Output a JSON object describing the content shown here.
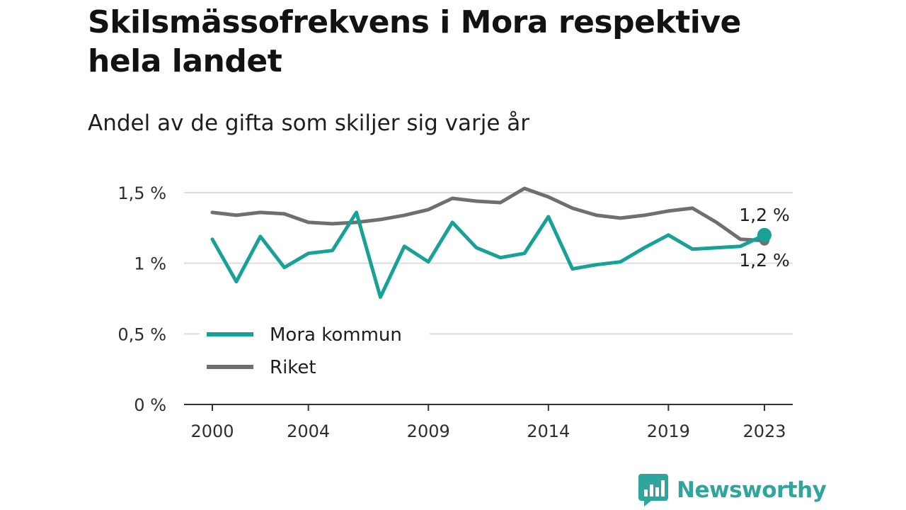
{
  "colors": {
    "mora": "#17a197",
    "riket": "#6f6e73",
    "grid": "#dedede",
    "axis": "#333333",
    "brand": "#2ea69e"
  },
  "brand": {
    "name": "Newsworthy",
    "icon": "newsworthy-logo-icon"
  },
  "chart_data": {
    "type": "line",
    "title": "Skilsmässofrekvens i Mora respektive hela landet",
    "subtitle": "Andel av de gifta som skiljer sig varje år",
    "xlabel": "",
    "ylabel": "",
    "x": [
      2000,
      2001,
      2002,
      2003,
      2004,
      2005,
      2006,
      2007,
      2008,
      2009,
      2010,
      2011,
      2012,
      2013,
      2014,
      2015,
      2016,
      2017,
      2018,
      2019,
      2020,
      2021,
      2022,
      2023
    ],
    "x_ticks": [
      2000,
      2004,
      2009,
      2014,
      2019,
      2023
    ],
    "x_tick_labels": [
      "2000",
      "2004",
      "2009",
      "2014",
      "2019",
      "2023"
    ],
    "ylim": [
      0,
      1.5
    ],
    "y_ticks": [
      0,
      0.5,
      1,
      1.5
    ],
    "y_tick_labels": [
      "0 %",
      "0,5 %",
      "1 %",
      "1,5 %"
    ],
    "grid": true,
    "legend_position": "bottom-left",
    "series": [
      {
        "name": "Mora kommun",
        "values": [
          1.17,
          0.87,
          1.19,
          0.97,
          1.07,
          1.09,
          1.36,
          0.76,
          1.12,
          1.01,
          1.29,
          1.11,
          1.04,
          1.07,
          1.33,
          0.96,
          0.99,
          1.01,
          1.11,
          1.2,
          1.1,
          1.11,
          1.12,
          1.2
        ],
        "end_label": "1,2 %"
      },
      {
        "name": "Riket",
        "values": [
          1.36,
          1.34,
          1.36,
          1.35,
          1.29,
          1.28,
          1.29,
          1.31,
          1.34,
          1.38,
          1.46,
          1.44,
          1.43,
          1.53,
          1.47,
          1.39,
          1.34,
          1.32,
          1.34,
          1.37,
          1.39,
          1.29,
          1.17,
          1.16
        ],
        "end_label": "1,2 %"
      }
    ]
  }
}
